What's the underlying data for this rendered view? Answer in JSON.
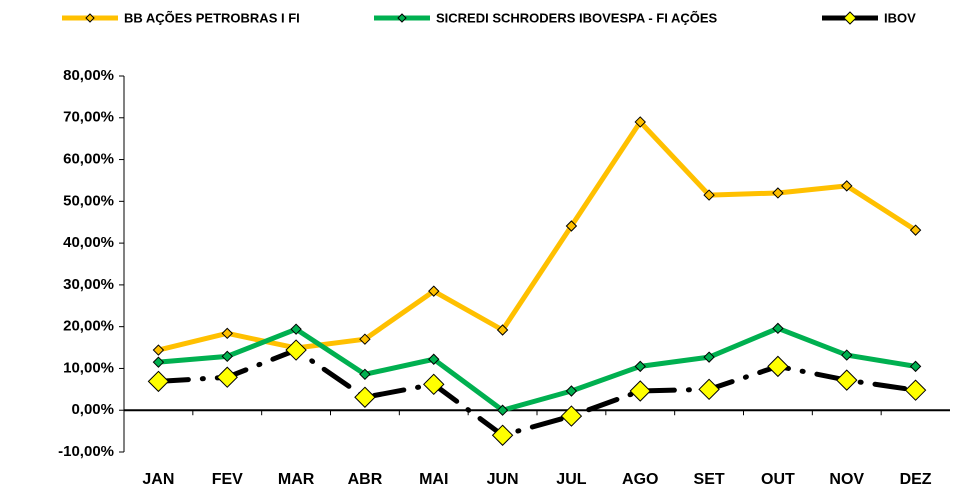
{
  "chart_data": {
    "type": "line",
    "categories": [
      "JAN",
      "FEV",
      "MAR",
      "ABR",
      "MAI",
      "JUN",
      "JUL",
      "AGO",
      "SET",
      "OUT",
      "NOV",
      "DEZ"
    ],
    "series": [
      {
        "name": "BB AÇÕES PETROBRAS I FI",
        "color": "#ffc000",
        "marker_color": "#ffc000",
        "values": [
          14.4,
          18.4,
          14.9,
          17.0,
          28.5,
          19.2,
          44.1,
          69.0,
          51.5,
          52.0,
          53.7,
          43.1
        ]
      },
      {
        "name": "SICREDI SCHRODERS IBOVESPA - FI AÇÕES",
        "color": "#00b050",
        "marker_color": "#00b050",
        "values": [
          11.5,
          12.9,
          19.4,
          8.6,
          12.2,
          0,
          4.6,
          10.5,
          12.7,
          19.6,
          13.2,
          10.5
        ]
      },
      {
        "name": "IBOV",
        "color": "#000000",
        "marker_color": "#ffff00",
        "dashed": true,
        "values": [
          6.9,
          7.9,
          14.4,
          3.1,
          6.2,
          -6.0,
          -1.4,
          4.6,
          5.0,
          10.5,
          7.2,
          4.8
        ]
      }
    ],
    "ylim": [
      -10,
      80
    ],
    "yticks": [
      {
        "value": -10,
        "label": "-10,00%"
      },
      {
        "value": 0,
        "label": "0,00%"
      },
      {
        "value": 10,
        "label": "10,00%"
      },
      {
        "value": 20,
        "label": "20,00%"
      },
      {
        "value": 30,
        "label": "30,00%"
      },
      {
        "value": 40,
        "label": "40,00%"
      },
      {
        "value": 50,
        "label": "50,00%"
      },
      {
        "value": 60,
        "label": "60,00%"
      },
      {
        "value": 70,
        "label": "70,00%"
      },
      {
        "value": 80,
        "label": "80,00%"
      }
    ],
    "grid": false,
    "legend": "top"
  }
}
